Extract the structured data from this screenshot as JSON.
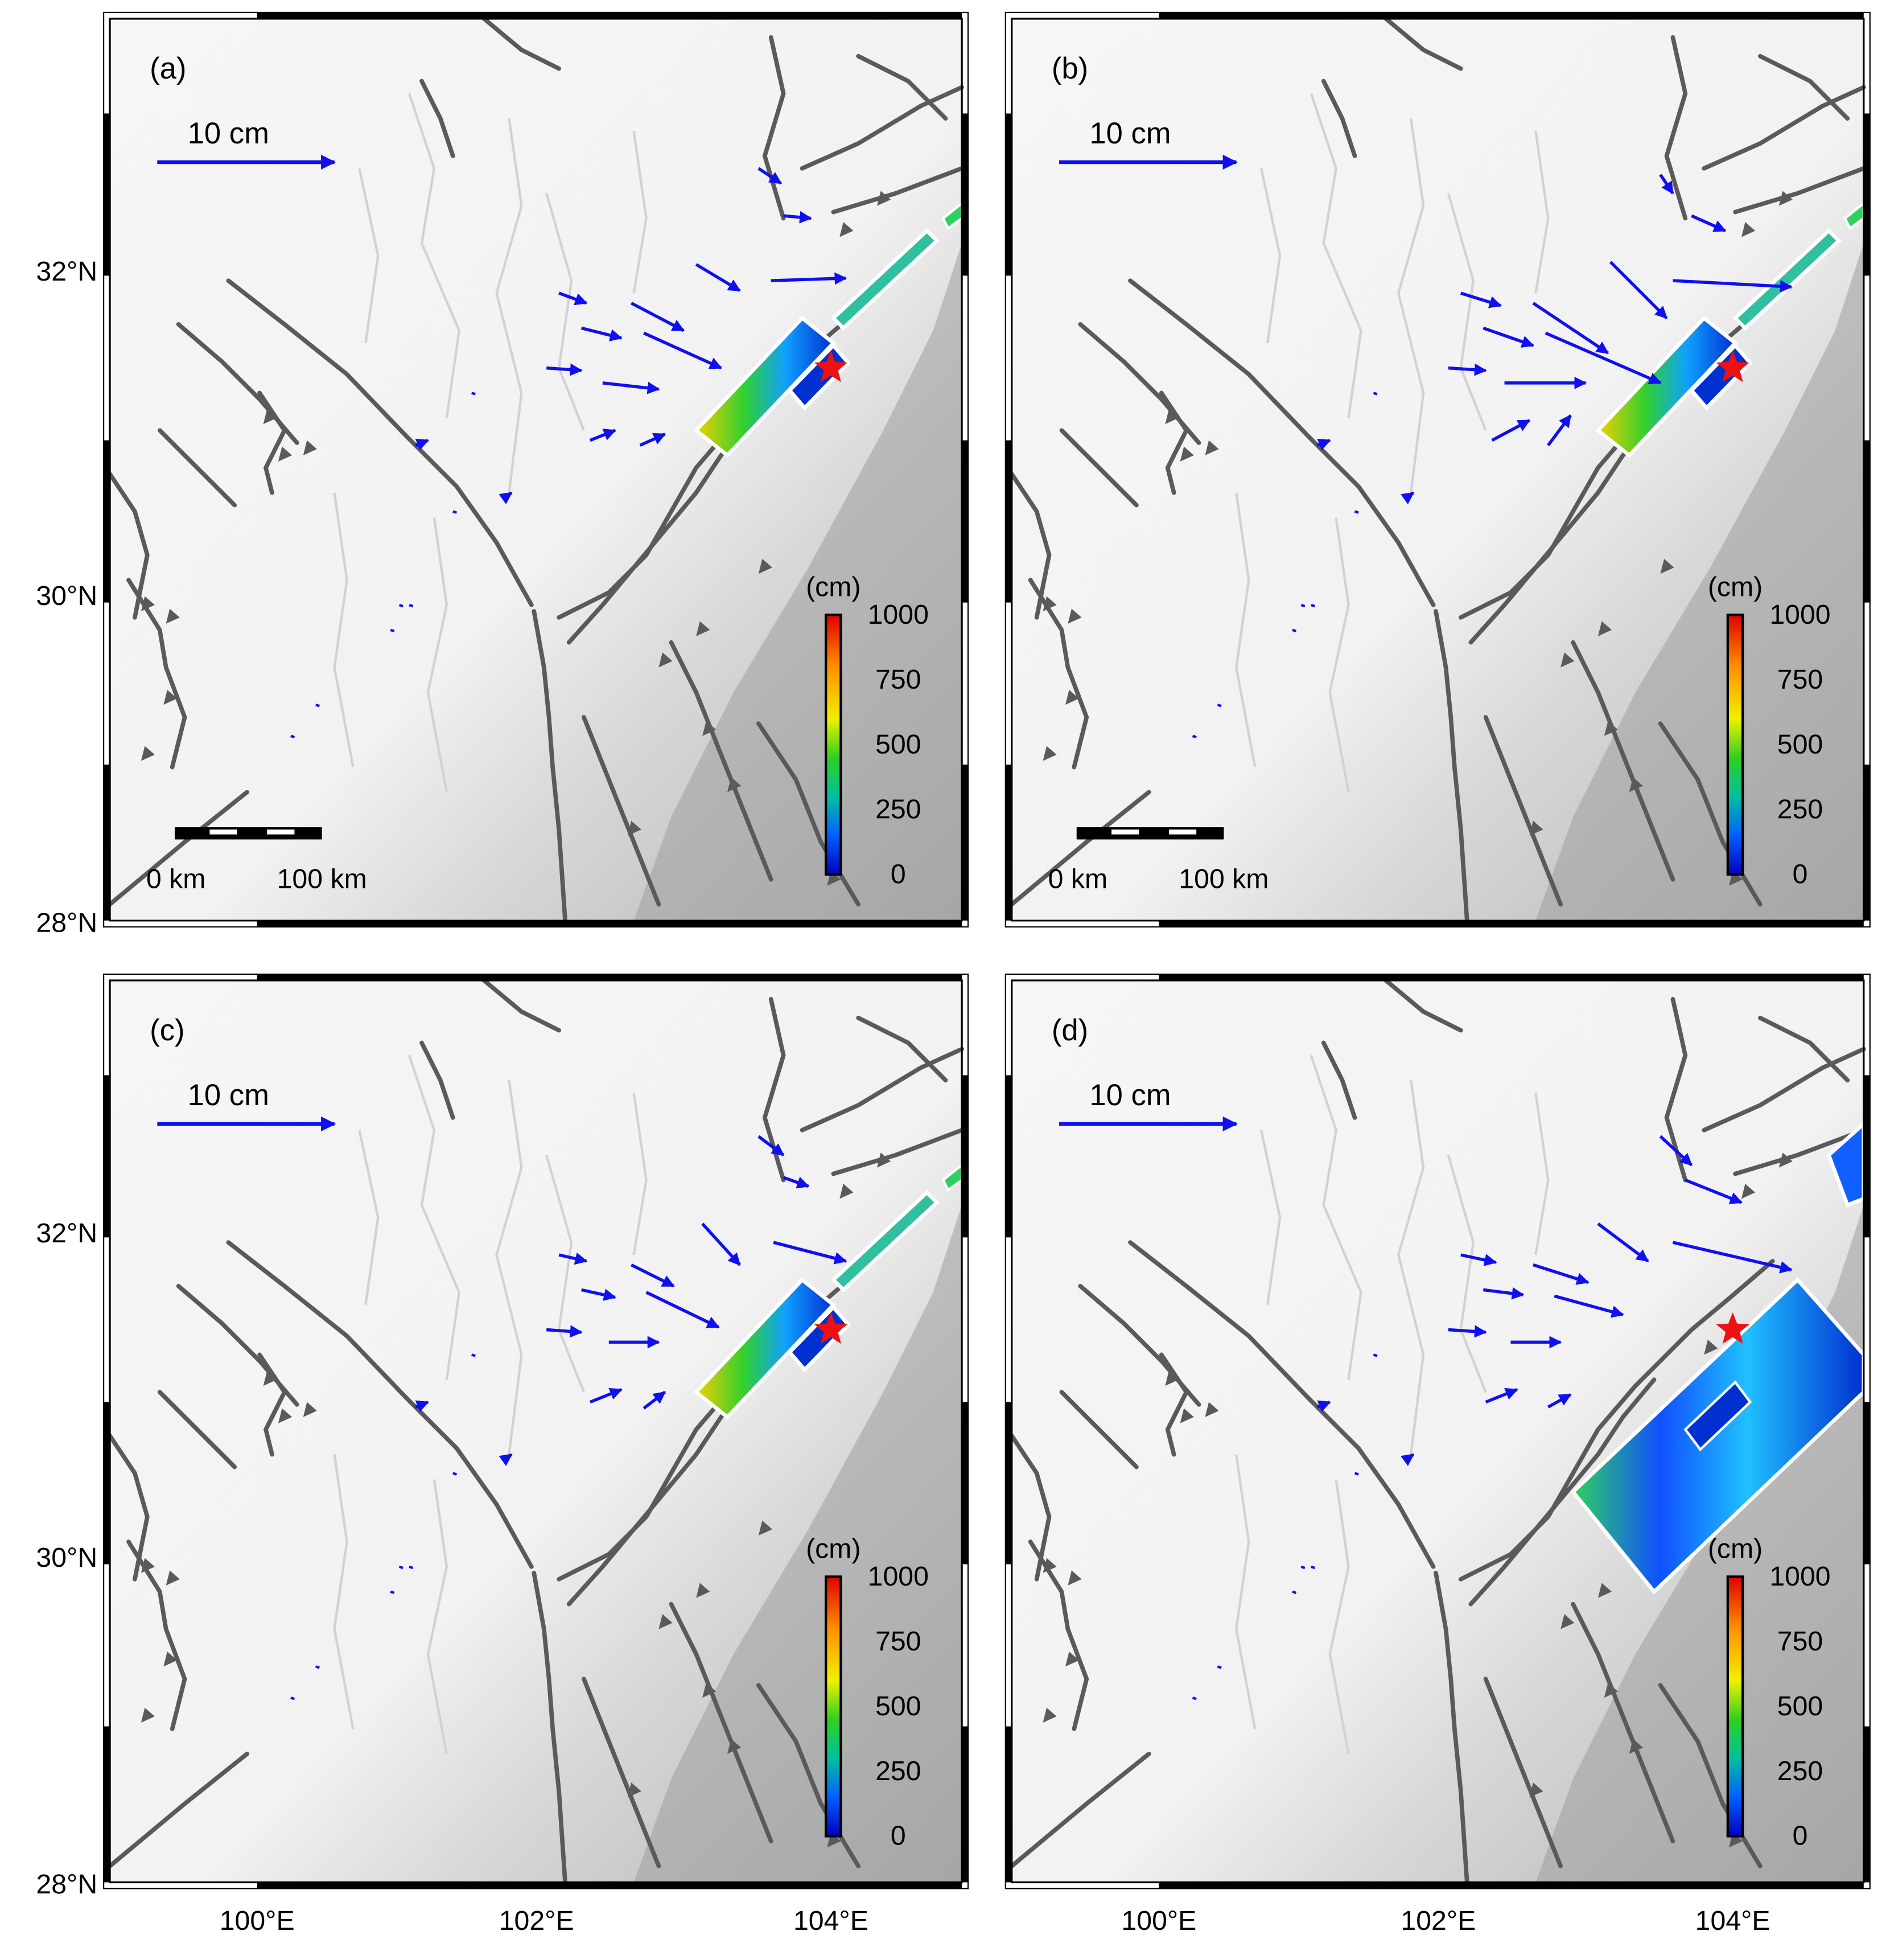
{
  "axes": {
    "lat_labels": [
      "32°N",
      "30°N",
      "28°N"
    ],
    "lon_labels": [
      "100°E",
      "102°E",
      "104°E"
    ]
  },
  "legend": {
    "vector_scale_label": "10 cm",
    "scalebar_start": "0 km",
    "scalebar_end": "100 km",
    "colorbar_unit": "(cm)",
    "colorbar_ticks": [
      "1000",
      "750",
      "500",
      "250",
      "0"
    ]
  },
  "colors": {
    "vector": "#1010ee",
    "fault": "#5a5a5a",
    "epicenter": "#ee1111",
    "colorbar": [
      "#0000c0",
      "#0060ff",
      "#00c0a0",
      "#30d020",
      "#f0f000",
      "#ff9000",
      "#e00000"
    ]
  },
  "icons": {
    "epicenter": "red-star-icon",
    "fault_thrust": "thrust-triangle-icon"
  },
  "panels": [
    {
      "id": "a",
      "label": "(a)",
      "has_scalebar": true,
      "slip_model": "two-segment narrow"
    },
    {
      "id": "b",
      "label": "(b)",
      "has_scalebar": true,
      "slip_model": "two-segment narrow"
    },
    {
      "id": "c",
      "label": "(c)",
      "has_scalebar": false,
      "slip_model": "two-segment narrow"
    },
    {
      "id": "d",
      "label": "(d)",
      "has_scalebar": false,
      "slip_model": "single wide fault"
    }
  ]
}
